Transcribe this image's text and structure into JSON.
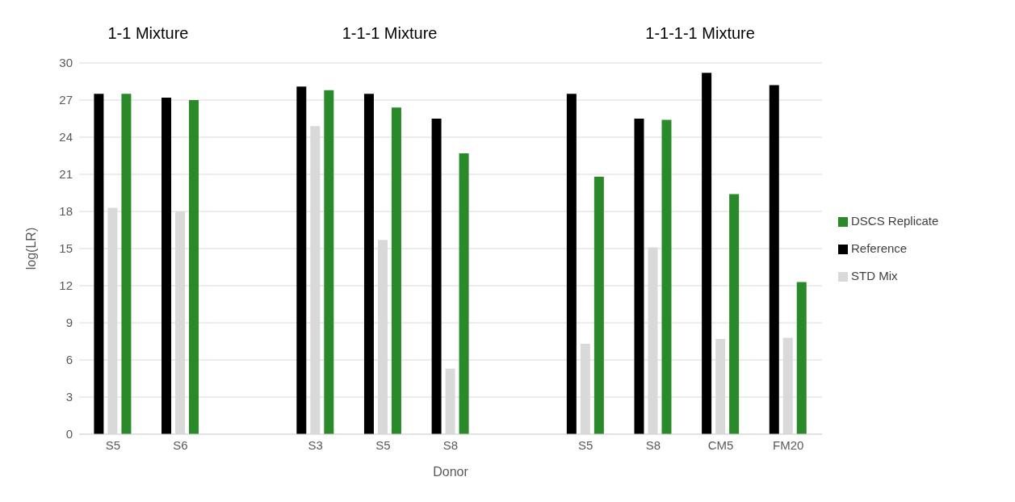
{
  "chart_data": {
    "type": "bar",
    "xlabel": "Donor",
    "ylabel": "log(LR)",
    "categories": [
      "S5",
      "S6",
      null,
      "S3",
      "S5",
      "S8",
      null,
      "S5",
      "S8",
      "CM5",
      "FM20"
    ],
    "series": [
      {
        "name": "Reference",
        "color": "#000000",
        "values": [
          27.5,
          27.2,
          null,
          28.1,
          27.5,
          25.5,
          null,
          27.5,
          25.5,
          29.2,
          28.2
        ]
      },
      {
        "name": "STD Mix",
        "color": "#d9d9d9",
        "values": [
          18.3,
          18.0,
          null,
          24.9,
          15.7,
          5.3,
          null,
          7.3,
          15.1,
          7.7,
          7.8
        ]
      },
      {
        "name": "DSCS Replicate",
        "color": "#2a8a2a",
        "values": [
          27.5,
          27.0,
          null,
          27.8,
          26.4,
          22.7,
          null,
          20.8,
          25.4,
          19.4,
          12.3
        ]
      }
    ],
    "annotations": [
      "1-1 Mixture",
      "1-1-1 Mixture",
      "1-1-1-1 Mixture"
    ],
    "ylim": [
      0,
      30
    ],
    "yticks": [
      0,
      3,
      6,
      9,
      12,
      15,
      18,
      21,
      24,
      27,
      30
    ],
    "grid": "y",
    "legend": "right"
  }
}
